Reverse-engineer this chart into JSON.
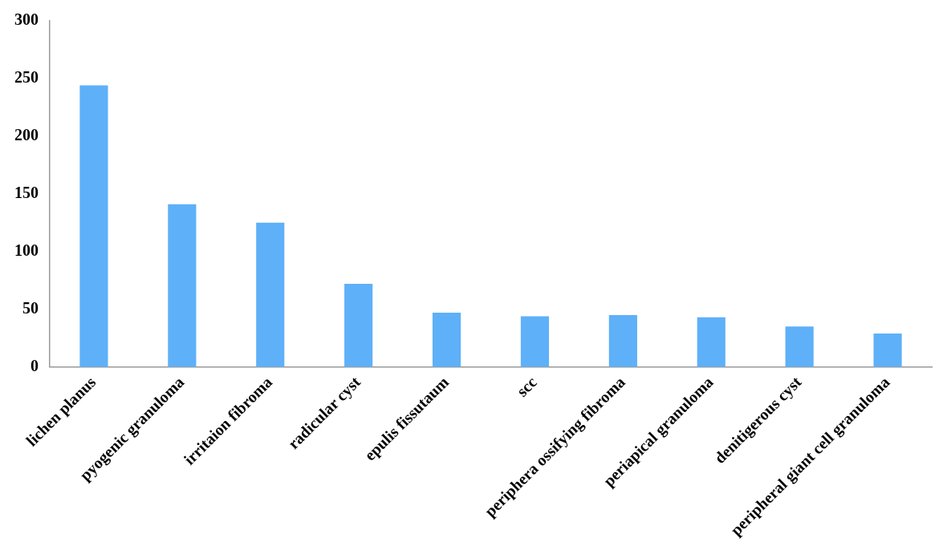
{
  "chart_data": {
    "type": "bar",
    "categories": [
      "lichen planus",
      "pyogenic granuloma",
      "irritaion fibroma",
      "radicular cyst",
      "epulis fissutaum",
      "scc",
      "periphera ossifying fibroma",
      "periapical granuloma",
      "denitigerous cyst",
      "peripheral giant cell granuloma"
    ],
    "values": [
      244,
      141,
      125,
      72,
      47,
      44,
      45,
      43,
      35,
      29
    ],
    "color": "#5eb0f8",
    "ylim": [
      0,
      300
    ],
    "yticks": [
      0,
      50,
      100,
      150,
      200,
      250,
      300
    ],
    "grid": false,
    "legend": false
  }
}
